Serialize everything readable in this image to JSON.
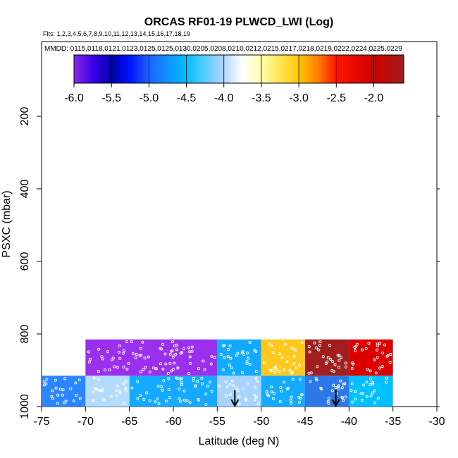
{
  "chart_data": {
    "type": "heatmap",
    "title": "ORCAS RF01-19 PLWCD_LWI (Log)",
    "subtitle_flights": "Flts: 1,2,3,4,5,6,7,8,9,10,11,12,13,14,15,16,17,18,19",
    "subtitle_dates": "MMDD: 0115,0118,0121,0123,0125,0125,0130,0205,0208,0210,0212,0215,0217,0218,0219,0222,0224,0225,0229",
    "xlabel": "Latitude (deg N)",
    "ylabel": "PSXC (mbar)",
    "xlim": [
      -75,
      -30
    ],
    "ylim": [
      1000,
      0
    ],
    "x_ticks": [
      -75,
      -70,
      -65,
      -60,
      -55,
      -50,
      -45,
      -40,
      -35,
      -30
    ],
    "y_ticks": [
      200,
      400,
      600,
      800,
      1000
    ],
    "colorbar": {
      "range": [
        -6.0,
        -1.6
      ],
      "ticks": [
        "-6.0",
        "-5.5",
        "-5.0",
        "-4.5",
        "-4.0",
        "-3.5",
        "-3.0",
        "-2.5",
        "-2.0"
      ],
      "tick_values": [
        -6.0,
        -5.5,
        -5.0,
        -4.5,
        -4.0,
        -3.5,
        -3.0,
        -2.5,
        -2.0
      ],
      "stops": [
        {
          "v": -6.0,
          "color": "#8a2be2"
        },
        {
          "v": -5.75,
          "color": "#3a00e8"
        },
        {
          "v": -5.5,
          "color": "#0000b0"
        },
        {
          "v": -5.25,
          "color": "#0014ff"
        },
        {
          "v": -5.0,
          "color": "#1e64ff"
        },
        {
          "v": -4.5,
          "color": "#00c0ff"
        },
        {
          "v": -4.0,
          "color": "#b0d8ff"
        },
        {
          "v": -3.75,
          "color": "#ffffff"
        },
        {
          "v": -3.5,
          "color": "#ffffaa"
        },
        {
          "v": -3.0,
          "color": "#ffc800"
        },
        {
          "v": -2.75,
          "color": "#ff8000"
        },
        {
          "v": -2.5,
          "color": "#ff1500"
        },
        {
          "v": -2.0,
          "color": "#d00000"
        },
        {
          "v": -1.6,
          "color": "#a01c1c"
        }
      ]
    },
    "cells": [
      {
        "lat": [
          -70,
          -55
        ],
        "p": [
          815,
          915
        ],
        "value": -5.9,
        "color": "#9a30ee"
      },
      {
        "lat": [
          -55,
          -50
        ],
        "p": [
          815,
          915
        ],
        "value": -4.7,
        "color": "#11aaff"
      },
      {
        "lat": [
          -50,
          -45
        ],
        "p": [
          815,
          915
        ],
        "value": -3.2,
        "color": "#ffc81e"
      },
      {
        "lat": [
          -45,
          -40
        ],
        "p": [
          815,
          915
        ],
        "value": -1.8,
        "color": "#a01e1e"
      },
      {
        "lat": [
          -40,
          -35
        ],
        "p": [
          815,
          915
        ],
        "value": -2.1,
        "color": "#dd0000"
      },
      {
        "lat": [
          -75,
          -70
        ],
        "p": [
          915,
          1000
        ],
        "value": -5.0,
        "color": "#2b85ff"
      },
      {
        "lat": [
          -70,
          -65
        ],
        "p": [
          915,
          1000
        ],
        "value": -4.1,
        "color": "#b4dcff"
      },
      {
        "lat": [
          -65,
          -55
        ],
        "p": [
          915,
          1000
        ],
        "value": -4.6,
        "color": "#14aaff"
      },
      {
        "lat": [
          -55,
          -50
        ],
        "p": [
          915,
          1000
        ],
        "value": -4.2,
        "color": "#a8d2ff"
      },
      {
        "lat": [
          -50,
          -45
        ],
        "p": [
          915,
          1000
        ],
        "value": -4.6,
        "color": "#14aaff"
      },
      {
        "lat": [
          -45,
          -40
        ],
        "p": [
          915,
          1000
        ],
        "value": -5.1,
        "color": "#2d78e8"
      },
      {
        "lat": [
          -40,
          -35
        ],
        "p": [
          915,
          1000
        ],
        "value": -4.5,
        "color": "#00c0ff"
      }
    ],
    "arrows": [
      {
        "lat": -53,
        "p_start": 955,
        "p_end": 1000
      },
      {
        "lat": -41.5,
        "p_start": 955,
        "p_end": 1000
      }
    ]
  }
}
